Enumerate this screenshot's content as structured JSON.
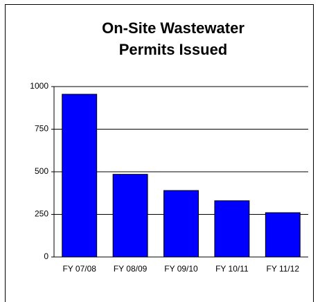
{
  "chart_data": {
    "type": "bar",
    "title": [
      "On-Site Wastewater",
      "Permits Issued"
    ],
    "categories": [
      "FY 07/08",
      "FY 08/09",
      "FY 09/10",
      "FY 10/11",
      "FY 11/12"
    ],
    "values": [
      955,
      485,
      390,
      330,
      260
    ],
    "color": "#0000ff",
    "ylim": [
      0,
      1000
    ],
    "yticks": [
      0,
      250,
      500,
      750,
      1000
    ],
    "grid": true
  }
}
